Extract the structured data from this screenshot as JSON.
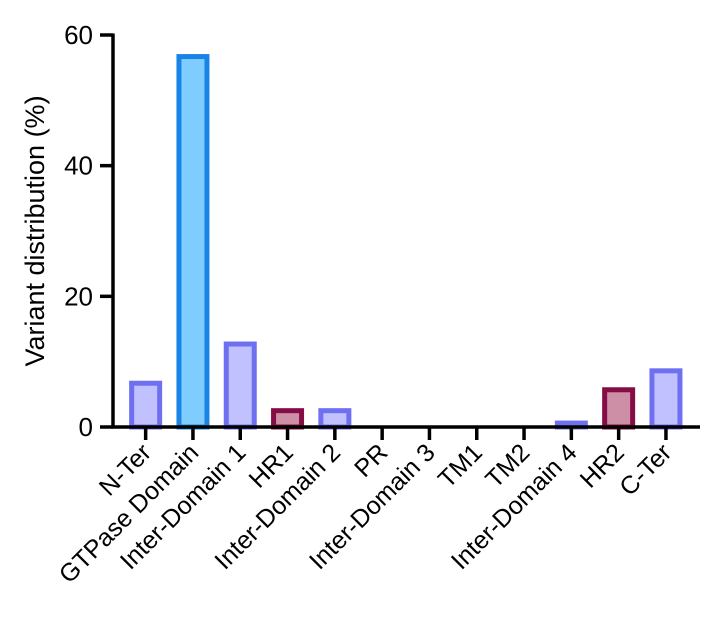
{
  "chart_data": {
    "type": "bar",
    "title": "",
    "xlabel": "",
    "ylabel": "Variant distribution (%)",
    "ylim": [
      0,
      60
    ],
    "yticks": [
      0,
      20,
      40,
      60
    ],
    "ytick_labels": [
      "0",
      "20",
      "40",
      "60"
    ],
    "grid": false,
    "categories": [
      "N-Ter",
      "GTPase Domain",
      "Inter-Domain 1",
      "HR1",
      "Inter-Domain 2",
      "PR",
      "Inter-Domain 3",
      "TM1",
      "TM2",
      "Inter-Domain 4",
      "HR2",
      "C-Ter"
    ],
    "values": [
      6.7,
      56.7,
      12.7,
      2.5,
      2.5,
      0,
      0,
      0,
      0,
      0.6,
      5.7,
      8.6
    ],
    "bar_styles": [
      {
        "fill": "#c1c1ff",
        "stroke": "#6f6ff2"
      },
      {
        "fill": "#7fccff",
        "stroke": "#1a84e6"
      },
      {
        "fill": "#c1c1ff",
        "stroke": "#6f6ff2"
      },
      {
        "fill": "#cc8fa6",
        "stroke": "#850d45"
      },
      {
        "fill": "#c1c1ff",
        "stroke": "#6f6ff2"
      },
      {
        "fill": "#c1c1ff",
        "stroke": "#6f6ff2"
      },
      {
        "fill": "#c1c1ff",
        "stroke": "#6f6ff2"
      },
      {
        "fill": "#c1c1ff",
        "stroke": "#6f6ff2"
      },
      {
        "fill": "#c1c1ff",
        "stroke": "#6f6ff2"
      },
      {
        "fill": "#c1c1ff",
        "stroke": "#6f6ff2"
      },
      {
        "fill": "#cc8fa6",
        "stroke": "#850d45"
      },
      {
        "fill": "#c1c1ff",
        "stroke": "#6f6ff2"
      }
    ]
  }
}
